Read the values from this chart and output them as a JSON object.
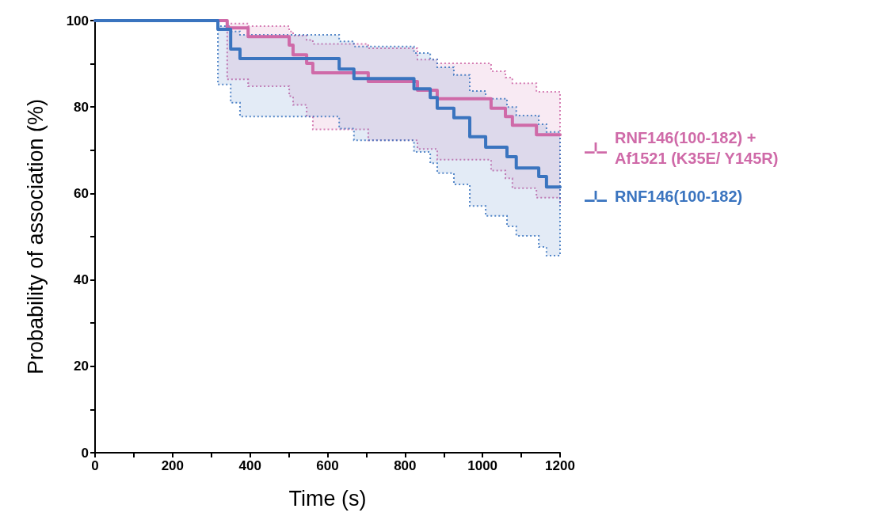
{
  "chart_data": {
    "type": "step",
    "xlabel": "Time (s)",
    "ylabel": "Probability of association (%)",
    "xlim": [
      0,
      1200
    ],
    "xticks": [
      0,
      200,
      400,
      600,
      800,
      1000,
      1200
    ],
    "ylim": [
      0,
      100
    ],
    "yticks": [
      0,
      20,
      40,
      60,
      80,
      100
    ],
    "grid": false,
    "legend": "right",
    "line_style": "solid",
    "marker": "none",
    "series": [
      {
        "name": "RNF146(100-182) + Af1521 (K35E/ Y145R)",
        "color": "#cf6aa8",
        "x": [
          0,
          341,
          395,
          501,
          511,
          546,
          562,
          705,
          832,
          883,
          1022,
          1059,
          1077,
          1139,
          1200
        ],
        "values": [
          100,
          98.3,
          96.3,
          94.3,
          92.1,
          90.1,
          87.9,
          85.9,
          83.9,
          81.9,
          79.7,
          77.8,
          75.8,
          73.6,
          73.6
        ],
        "lower": [
          100,
          86.4,
          84.8,
          82.5,
          80.5,
          77.8,
          74.8,
          72.3,
          70.3,
          67.8,
          65.3,
          63.5,
          61.2,
          59,
          57.5
        ],
        "upper": [
          100,
          99.3,
          98.7,
          97.5,
          96.5,
          95.5,
          94.6,
          93.6,
          91,
          90.1,
          88.3,
          86.8,
          85.5,
          83.5,
          83.5
        ]
      },
      {
        "name": "RNF146(100-182)",
        "color": "#3a74bf",
        "x": [
          0,
          317,
          350,
          374,
          630,
          668,
          823,
          865,
          883,
          926,
          967,
          1008,
          1063,
          1087,
          1145,
          1165,
          1200
        ],
        "values": [
          100,
          98,
          93.4,
          91.2,
          88.8,
          86.6,
          84.2,
          82.2,
          79.7,
          77.5,
          73.1,
          70.7,
          68.5,
          65.9,
          63.9,
          61.5,
          61.5
        ],
        "lower": [
          100,
          85.2,
          81,
          77.8,
          75,
          72.3,
          69.6,
          67,
          64.7,
          62.1,
          57.1,
          54.8,
          52.4,
          50.2,
          47.6,
          45.6,
          45.6
        ],
        "upper": [
          100,
          98.7,
          97.5,
          96.7,
          95.2,
          94,
          92.5,
          91,
          89.2,
          87.4,
          83.7,
          81.9,
          80,
          78,
          76,
          74.2,
          74.2
        ]
      }
    ]
  }
}
